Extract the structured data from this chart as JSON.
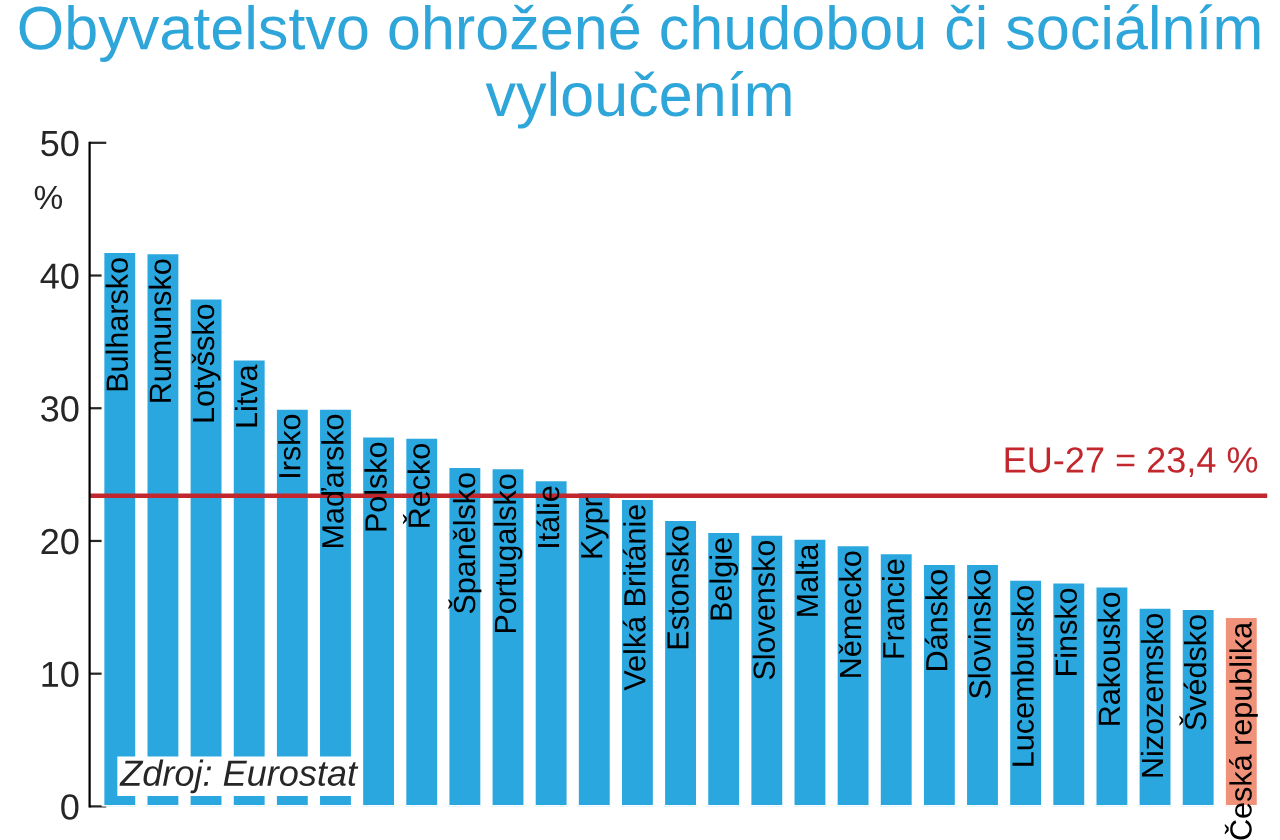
{
  "chart_data": {
    "type": "bar",
    "title": "Obyvatelstvo ohrožené chudobou či sociálním vyloučením",
    "ylabel": "%",
    "categories": [
      "Bulharsko",
      "Rumunsko",
      "Lotyšsko",
      "Litva",
      "Irsko",
      "Maďarsko",
      "Polsko",
      "Řecko",
      "Španělsko",
      "Portugalsko",
      "Itálie",
      "Kypr",
      "Velká Británie",
      "Estonsko",
      "Belgie",
      "Slovensko",
      "Malta",
      "Německo",
      "Francie",
      "Dánsko",
      "Slovinsko",
      "Lucembursko",
      "Finsko",
      "Rakousko",
      "Nizozemsko",
      "Švédsko",
      "Česká republika"
    ],
    "values": [
      41.8,
      41.7,
      38.3,
      33.7,
      30.0,
      30.0,
      27.9,
      27.8,
      25.6,
      25.5,
      24.6,
      23.7,
      23.2,
      21.6,
      20.7,
      20.5,
      20.2,
      19.7,
      19.1,
      18.3,
      18.3,
      17.1,
      16.9,
      16.6,
      15.0,
      14.9,
      14.3
    ],
    "colors": [
      "#2aa7de",
      "#2aa7de",
      "#2aa7de",
      "#2aa7de",
      "#2aa7de",
      "#2aa7de",
      "#2aa7de",
      "#2aa7de",
      "#2aa7de",
      "#2aa7de",
      "#2aa7de",
      "#2aa7de",
      "#2aa7de",
      "#2aa7de",
      "#2aa7de",
      "#2aa7de",
      "#2aa7de",
      "#2aa7de",
      "#2aa7de",
      "#2aa7de",
      "#2aa7de",
      "#2aa7de",
      "#2aa7de",
      "#2aa7de",
      "#2aa7de",
      "#2aa7de",
      "#f0927a"
    ],
    "ylim": [
      0,
      50
    ],
    "yticks": [
      0,
      10,
      20,
      30,
      40,
      50
    ],
    "grid": false,
    "legend": false,
    "ref_lines": [
      {
        "axis": "y",
        "value": 23.4,
        "label": "EU-27 = 23,4 %",
        "color": "#c1272d",
        "line_style": "solid"
      }
    ],
    "annotations": [
      "Zdroj: Eurostat"
    ]
  }
}
